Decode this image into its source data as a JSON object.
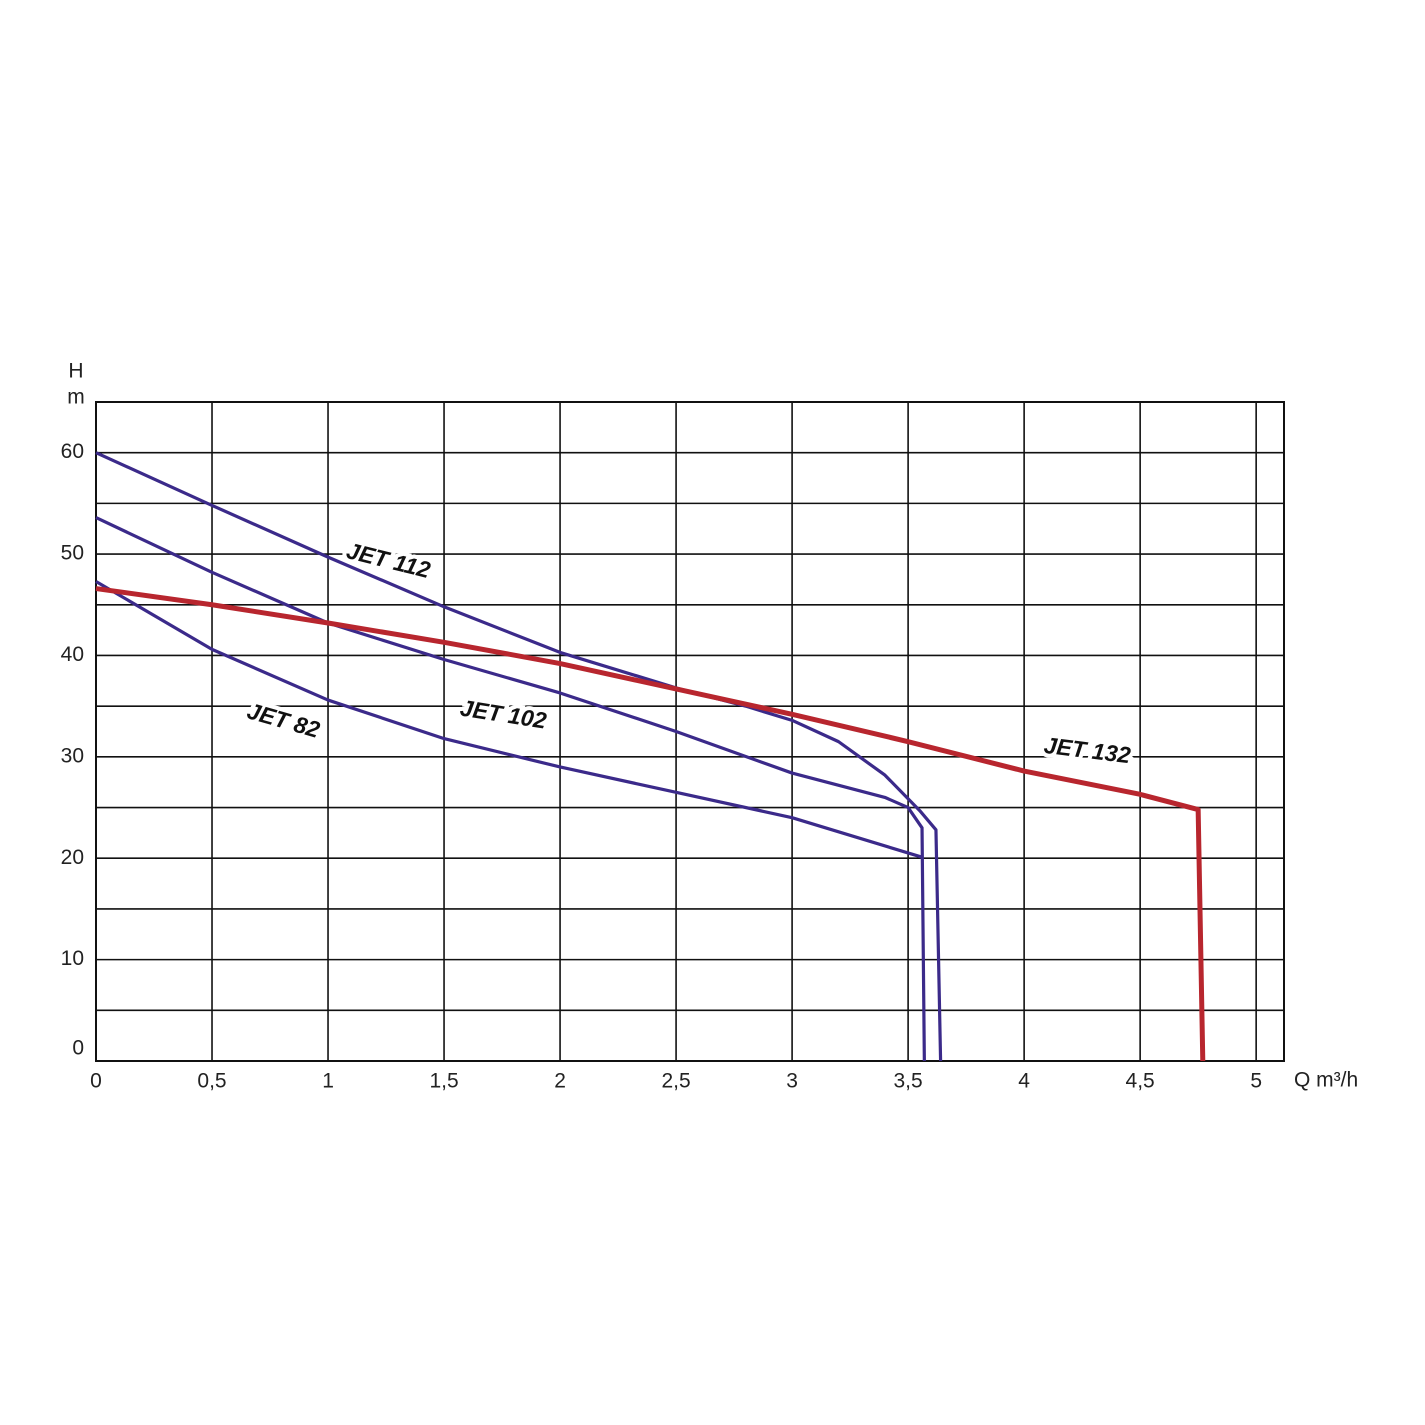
{
  "chart_data": {
    "type": "line",
    "y_label_top": "H",
    "y_label_unit": "m",
    "x_label": "Q m³/h",
    "xlim": [
      0,
      5.12
    ],
    "ylim": [
      0,
      65
    ],
    "xticks": [
      0,
      {
        "value": 0.5,
        "label": "0,5"
      },
      1,
      {
        "value": 1.5,
        "label": "1,5"
      },
      2,
      {
        "value": 2.5,
        "label": "2,5"
      },
      3,
      {
        "value": 3.5,
        "label": "3,5"
      },
      4,
      {
        "value": 4.5,
        "label": "4,5"
      },
      5
    ],
    "yticks": [
      0,
      10,
      20,
      30,
      40,
      50,
      60
    ],
    "y_minor_grid": [
      5,
      15,
      25,
      35,
      45,
      55,
      65
    ],
    "grid": true,
    "series": [
      {
        "name": "JET 112",
        "color": "#3b2a8a",
        "x": [
          0,
          0.5,
          1,
          1.5,
          2,
          2.5,
          2.8,
          3,
          3.2,
          3.4,
          3.55,
          3.62,
          3.64
        ],
        "values": [
          60,
          54.8,
          49.7,
          44.8,
          40.3,
          36.8,
          35,
          33.6,
          31.5,
          28.2,
          24.7,
          22.8,
          0
        ]
      },
      {
        "name": "JET 102",
        "color": "#3b2a8a",
        "x": [
          0,
          0.5,
          1,
          1.5,
          2,
          2.5,
          3,
          3.4,
          3.5,
          3.56,
          3.57
        ],
        "values": [
          53.6,
          48.2,
          43.2,
          39.6,
          36.3,
          32.5,
          28.4,
          26,
          25,
          23,
          0
        ]
      },
      {
        "name": "JET 82",
        "color": "#3b2a8a",
        "x": [
          0,
          0.5,
          1,
          1.5,
          2,
          2.5,
          3,
          3.56
        ],
        "values": [
          47.3,
          40.6,
          35.6,
          31.8,
          29,
          26.5,
          24,
          20.1
        ]
      },
      {
        "name": "JET 132",
        "color": "#b8262e",
        "x": [
          0,
          0.5,
          1,
          1.5,
          2,
          2.5,
          3,
          3.5,
          4,
          4.5,
          4.75,
          4.77
        ],
        "values": [
          46.6,
          45,
          43.2,
          41.3,
          39.2,
          36.7,
          34.2,
          31.5,
          28.6,
          26.3,
          24.8,
          0
        ]
      }
    ]
  }
}
